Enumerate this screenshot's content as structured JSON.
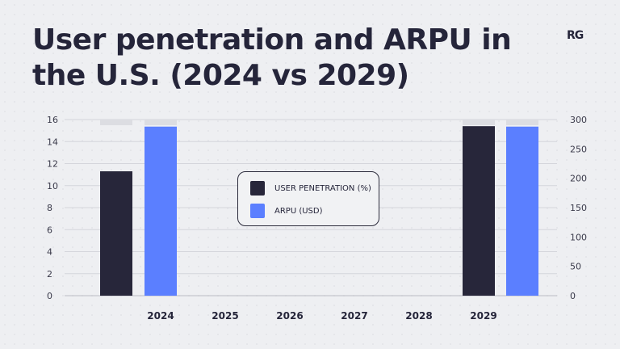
{
  "header": {
    "title": "User penetration and ARPU in the U.S. (2024 vs 2029)",
    "logo": "RG"
  },
  "colors": {
    "background": "#eeeff2",
    "user_penetration": "#27263a",
    "arpu": "#5b7fff",
    "cap": "#dcdde2",
    "grid": "#d4d5db"
  },
  "chart_data": {
    "type": "bar",
    "title": "User penetration and ARPU in the U.S. (2024 vs 2029)",
    "categories": [
      "2024",
      "2025",
      "2026",
      "2027",
      "2028",
      "2029"
    ],
    "series": [
      {
        "name": "USER PENETRATION (%)",
        "axis": "left",
        "values": [
          11.3,
          null,
          null,
          null,
          null,
          15.4
        ]
      },
      {
        "name": "ARPU (USD)",
        "axis": "right",
        "values": [
          288,
          null,
          null,
          null,
          null,
          288
        ]
      }
    ],
    "y_left": {
      "ticks": [
        "0",
        "2",
        "4",
        "6",
        "8",
        "10",
        "12",
        "14",
        "16"
      ],
      "range": [
        0,
        16
      ]
    },
    "y_right": {
      "ticks": [
        "0",
        "50",
        "100",
        "150",
        "200",
        "250",
        "300"
      ],
      "range": [
        0,
        300
      ]
    },
    "grid": true,
    "legend": {
      "position": "center"
    }
  },
  "legend": {
    "items": [
      {
        "label": "USER PENETRATION (%)"
      },
      {
        "label": "ARPU (USD)"
      }
    ]
  }
}
